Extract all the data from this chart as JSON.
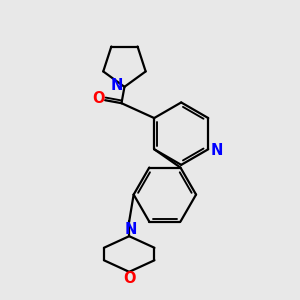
{
  "bg_color": "#e8e8e8",
  "bond_color": "#000000",
  "N_color": "#0000ff",
  "O_color": "#ff0000",
  "line_width": 1.6,
  "font_size": 10.5,
  "xlim": [
    0,
    10
  ],
  "ylim": [
    0,
    10
  ]
}
